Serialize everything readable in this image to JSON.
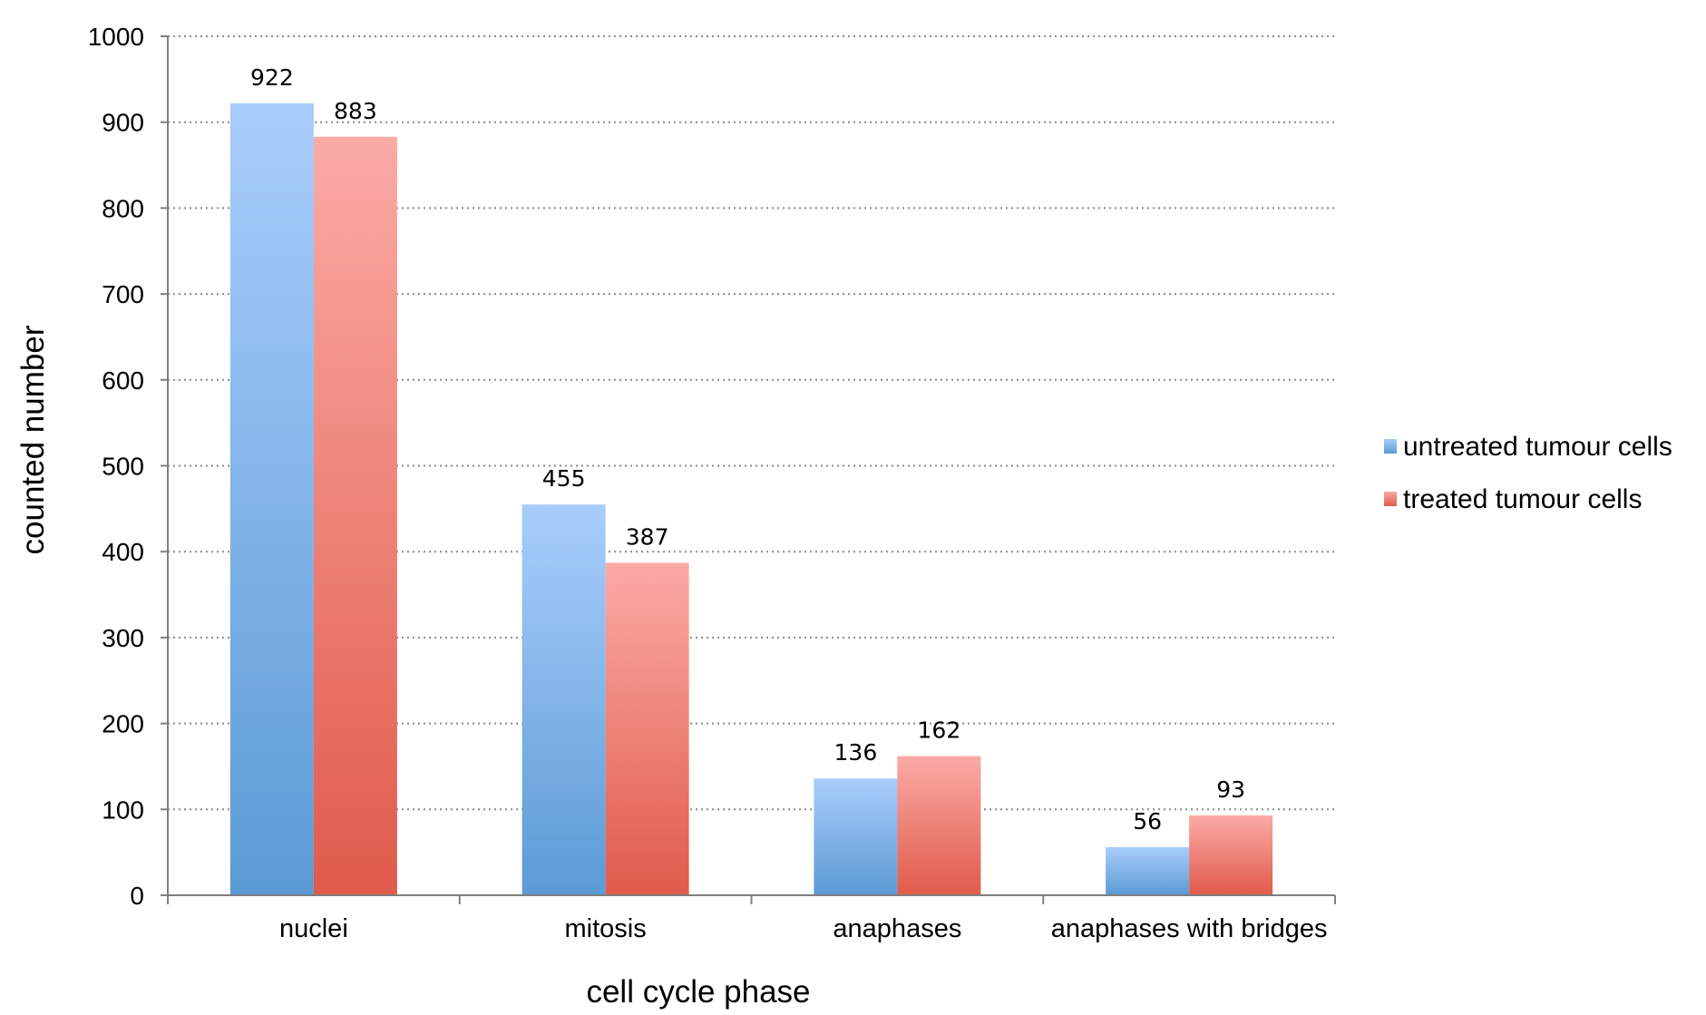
{
  "chart_data": {
    "type": "bar",
    "categories": [
      "nuclei",
      "mitosis",
      "anaphases",
      "anaphases with bridges"
    ],
    "series": [
      {
        "name": "untreated tumour cells",
        "values": [
          922,
          455,
          136,
          56
        ],
        "color": "#5b9bd5",
        "color_light": "#a9cdfb"
      },
      {
        "name": "treated tumour cells",
        "values": [
          883,
          387,
          162,
          93
        ],
        "color": "#e05b4b",
        "color_light": "#fbaaa5"
      }
    ],
    "xlabel": "cell cycle phase",
    "ylabel": "counted number",
    "ylim": [
      0,
      1000
    ],
    "yticks": [
      0,
      100,
      200,
      300,
      400,
      500,
      600,
      700,
      800,
      900,
      1000
    ],
    "grid": true,
    "grid_style": "dotted",
    "legend_position": "right",
    "data_labels": true
  }
}
